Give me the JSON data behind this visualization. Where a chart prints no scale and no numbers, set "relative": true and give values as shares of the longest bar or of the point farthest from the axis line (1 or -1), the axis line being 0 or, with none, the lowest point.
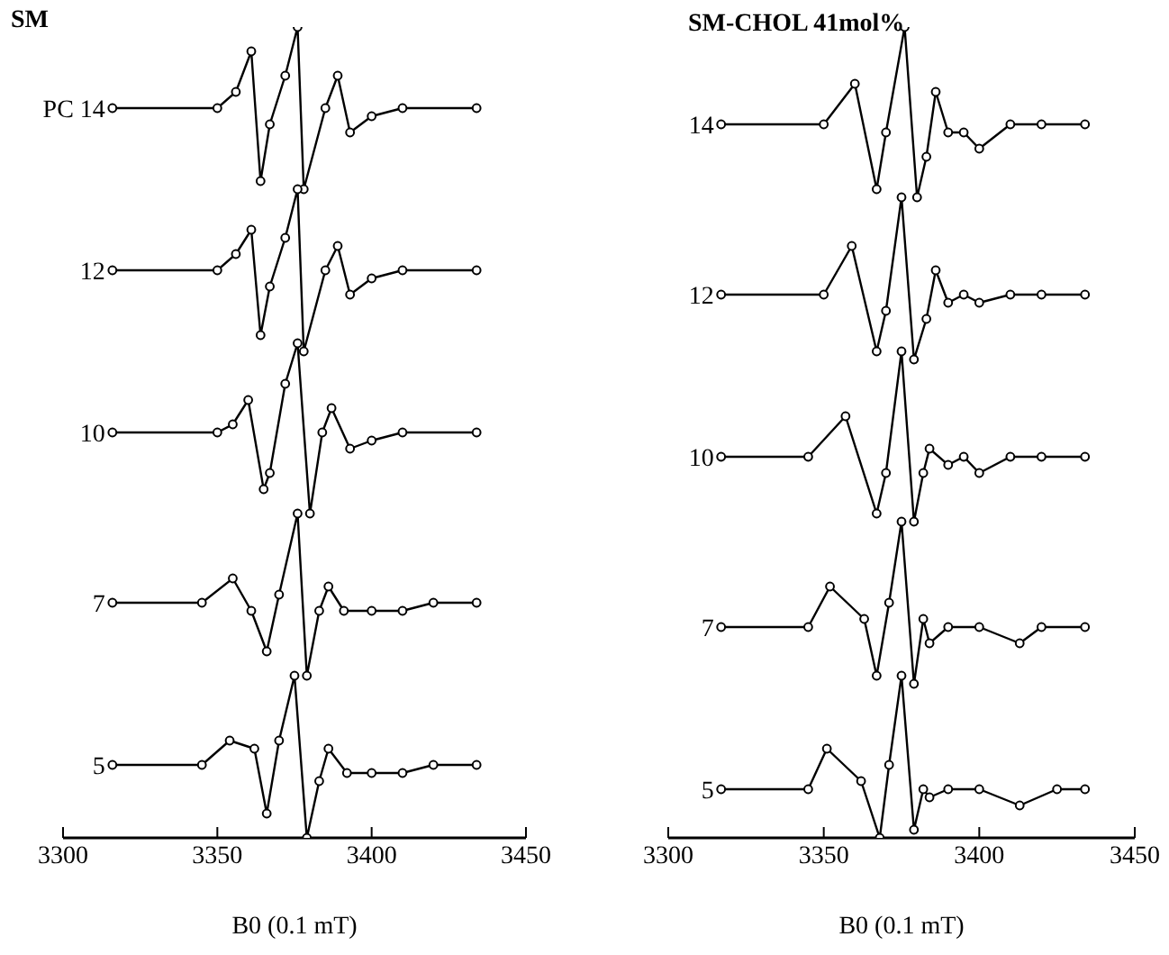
{
  "chart_data": [
    {
      "type": "line",
      "title": "SM",
      "xlabel": "B0 (0.1 mT)",
      "relative": true,
      "xlim": [
        3300,
        3450
      ],
      "xticks": [
        3300,
        3350,
        3400,
        3450
      ],
      "marker": "circle",
      "legend": false,
      "grid": false,
      "series": [
        {
          "name": "PC 14",
          "color": "#000000",
          "x": [
            3316,
            3350,
            3356,
            3361,
            3364,
            3367,
            3372,
            3376,
            3378,
            3385,
            3389,
            3393,
            3400,
            3410,
            3434
          ],
          "values": [
            0.9,
            0.9,
            0.92,
            0.97,
            0.81,
            0.88,
            0.94,
            1.0,
            0.8,
            0.9,
            0.94,
            0.87,
            0.89,
            0.9,
            0.9
          ]
        },
        {
          "name": "12",
          "color": "#000000",
          "x": [
            3316,
            3350,
            3356,
            3361,
            3364,
            3367,
            3372,
            3376,
            3378,
            3385,
            3389,
            3393,
            3400,
            3410,
            3434
          ],
          "values": [
            0.7,
            0.7,
            0.72,
            0.75,
            0.62,
            0.68,
            0.74,
            0.8,
            0.6,
            0.7,
            0.73,
            0.67,
            0.69,
            0.7,
            0.7
          ]
        },
        {
          "name": "10",
          "color": "#000000",
          "x": [
            3316,
            3350,
            3355,
            3360,
            3365,
            3367,
            3372,
            3376,
            3380,
            3384,
            3387,
            3393,
            3400,
            3410,
            3434
          ],
          "values": [
            0.5,
            0.5,
            0.51,
            0.54,
            0.43,
            0.45,
            0.56,
            0.61,
            0.4,
            0.5,
            0.53,
            0.48,
            0.49,
            0.5,
            0.5
          ]
        },
        {
          "name": "7",
          "color": "#000000",
          "x": [
            3316,
            3345,
            3355,
            3361,
            3366,
            3370,
            3376,
            3379,
            3383,
            3386,
            3391,
            3400,
            3410,
            3420,
            3434
          ],
          "values": [
            0.29,
            0.29,
            0.32,
            0.28,
            0.23,
            0.3,
            0.4,
            0.2,
            0.28,
            0.31,
            0.28,
            0.28,
            0.28,
            0.29,
            0.29
          ]
        },
        {
          "name": "5",
          "color": "#000000",
          "x": [
            3316,
            3345,
            3354,
            3362,
            3366,
            3370,
            3375,
            3379,
            3383,
            3386,
            3392,
            3400,
            3410,
            3420,
            3434
          ],
          "values": [
            0.09,
            0.09,
            0.12,
            0.11,
            0.03,
            0.12,
            0.2,
            0.0,
            0.07,
            0.11,
            0.08,
            0.08,
            0.08,
            0.09,
            0.09
          ]
        }
      ]
    },
    {
      "type": "line",
      "title": "SM-CHOL 41mol%",
      "xlabel": "B0 (0.1 mT)",
      "relative": true,
      "xlim": [
        3300,
        3450
      ],
      "xticks": [
        3300,
        3350,
        3400,
        3450
      ],
      "marker": "circle",
      "legend": false,
      "grid": false,
      "series": [
        {
          "name": "14",
          "color": "#000000",
          "x": [
            3317,
            3350,
            3360,
            3367,
            3370,
            3376,
            3380,
            3383,
            3386,
            3390,
            3395,
            3400,
            3410,
            3420,
            3434
          ],
          "values": [
            0.88,
            0.88,
            0.93,
            0.8,
            0.87,
            1.0,
            0.79,
            0.84,
            0.92,
            0.87,
            0.87,
            0.85,
            0.88,
            0.88,
            0.88
          ]
        },
        {
          "name": "12",
          "color": "#000000",
          "x": [
            3317,
            3350,
            3359,
            3367,
            3370,
            3375,
            3379,
            3383,
            3386,
            3390,
            3395,
            3400,
            3410,
            3420,
            3434
          ],
          "values": [
            0.67,
            0.67,
            0.73,
            0.6,
            0.65,
            0.79,
            0.59,
            0.64,
            0.7,
            0.66,
            0.67,
            0.66,
            0.67,
            0.67,
            0.67
          ]
        },
        {
          "name": "10",
          "color": "#000000",
          "x": [
            3317,
            3345,
            3357,
            3367,
            3370,
            3375,
            3379,
            3382,
            3384,
            3390,
            3395,
            3400,
            3410,
            3420,
            3434
          ],
          "values": [
            0.47,
            0.47,
            0.52,
            0.4,
            0.45,
            0.6,
            0.39,
            0.45,
            0.48,
            0.46,
            0.47,
            0.45,
            0.47,
            0.47,
            0.47
          ]
        },
        {
          "name": "7",
          "color": "#000000",
          "x": [
            3317,
            3345,
            3352,
            3363,
            3367,
            3371,
            3375,
            3379,
            3382,
            3384,
            3390,
            3400,
            3413,
            3420,
            3434
          ],
          "values": [
            0.26,
            0.26,
            0.31,
            0.27,
            0.2,
            0.29,
            0.39,
            0.19,
            0.27,
            0.24,
            0.26,
            0.26,
            0.24,
            0.26,
            0.26
          ]
        },
        {
          "name": "5",
          "color": "#000000",
          "x": [
            3317,
            3345,
            3351,
            3362,
            3368,
            3371,
            3375,
            3379,
            3382,
            3384,
            3390,
            3400,
            3413,
            3425,
            3434
          ],
          "values": [
            0.06,
            0.06,
            0.11,
            0.07,
            0.0,
            0.09,
            0.2,
            0.01,
            0.06,
            0.05,
            0.06,
            0.06,
            0.04,
            0.06,
            0.06
          ]
        }
      ]
    }
  ]
}
